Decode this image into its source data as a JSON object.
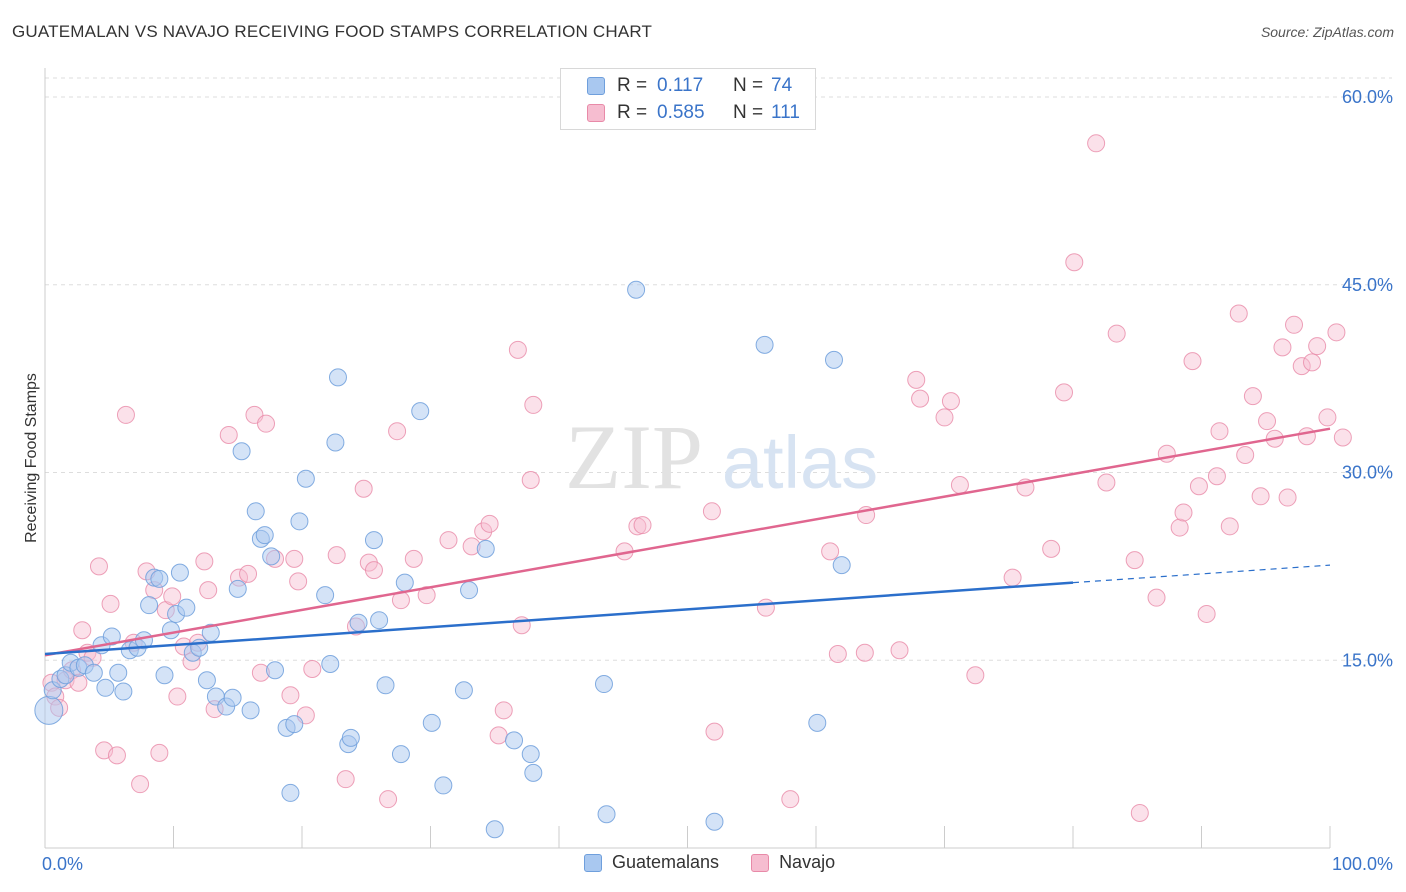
{
  "title": "GUATEMALAN VS NAVAJO RECEIVING FOOD STAMPS CORRELATION CHART",
  "source": "Source: ZipAtlas.com",
  "watermark": {
    "zip": "ZIP",
    "atlas": "atlas"
  },
  "colors": {
    "blue_fill": "#a9c8f0",
    "blue_stroke": "#6f9fdc",
    "blue_line": "#2b6fcb",
    "pink_fill": "#f6bdd0",
    "pink_stroke": "#e88aa8",
    "pink_line": "#e0668f",
    "tick_text": "#3a74c9",
    "grid": "#dddddd"
  },
  "legend": {
    "rows": [
      {
        "swatch": "blue",
        "r_label": "R =",
        "r_value": "0.117",
        "n_label": "N =",
        "n_value": "74"
      },
      {
        "swatch": "pink",
        "r_label": "R =",
        "r_value": "0.585",
        "n_label": "N =",
        "n_value": "111"
      }
    ]
  },
  "chart_data": {
    "type": "scatter",
    "title": "GUATEMALAN VS NAVAJO RECEIVING FOOD STAMPS CORRELATION CHART",
    "xlabel": "",
    "ylabel": "Receiving Food Stamps",
    "xlim": [
      0,
      100
    ],
    "ylim": [
      0,
      60
    ],
    "x_ticks": [
      "0.0%",
      "100.0%"
    ],
    "y_ticks": [
      {
        "value": 15,
        "label": "15.0%"
      },
      {
        "value": 30,
        "label": "30.0%"
      },
      {
        "value": 45,
        "label": "45.0%"
      },
      {
        "value": 60,
        "label": "60.0%"
      }
    ],
    "grid": "horizontal dashed",
    "legend_position": "bottom-center",
    "series": [
      {
        "name": "Guatemalans",
        "color": "blue",
        "trend": {
          "x0": 0,
          "y0": 15.5,
          "x1": 80,
          "y1": 21.2,
          "dash_x1": 100,
          "dash_y1": 22.6
        },
        "points": [
          [
            0.3,
            11.0
          ],
          [
            0.6,
            12.6
          ],
          [
            1.2,
            13.5
          ],
          [
            1.6,
            13.8
          ],
          [
            2.0,
            14.8
          ],
          [
            2.6,
            14.4
          ],
          [
            3.1,
            14.6
          ],
          [
            3.8,
            14.0
          ],
          [
            4.4,
            16.2
          ],
          [
            4.7,
            12.8
          ],
          [
            5.2,
            16.9
          ],
          [
            5.7,
            14.0
          ],
          [
            6.1,
            12.5
          ],
          [
            6.6,
            15.8
          ],
          [
            7.2,
            16.0
          ],
          [
            7.7,
            16.6
          ],
          [
            8.1,
            19.4
          ],
          [
            8.5,
            21.6
          ],
          [
            8.9,
            21.5
          ],
          [
            9.3,
            13.8
          ],
          [
            9.8,
            17.4
          ],
          [
            10.2,
            18.7
          ],
          [
            10.5,
            22.0
          ],
          [
            11.0,
            19.2
          ],
          [
            11.5,
            15.6
          ],
          [
            12.0,
            16.0
          ],
          [
            12.6,
            13.4
          ],
          [
            12.9,
            17.2
          ],
          [
            13.3,
            12.1
          ],
          [
            14.1,
            11.3
          ],
          [
            14.6,
            12.0
          ],
          [
            15.0,
            20.7
          ],
          [
            15.3,
            31.7
          ],
          [
            16.0,
            11.0
          ],
          [
            16.4,
            26.9
          ],
          [
            16.8,
            24.7
          ],
          [
            17.1,
            25.0
          ],
          [
            17.6,
            23.3
          ],
          [
            17.9,
            14.2
          ],
          [
            18.8,
            9.6
          ],
          [
            19.1,
            4.4
          ],
          [
            19.4,
            9.9
          ],
          [
            19.8,
            26.1
          ],
          [
            20.3,
            29.5
          ],
          [
            21.8,
            20.2
          ],
          [
            22.2,
            14.7
          ],
          [
            22.6,
            32.4
          ],
          [
            22.8,
            37.6
          ],
          [
            23.6,
            8.3
          ],
          [
            23.8,
            8.8
          ],
          [
            24.4,
            18.0
          ],
          [
            25.6,
            24.6
          ],
          [
            26.0,
            18.2
          ],
          [
            26.5,
            13.0
          ],
          [
            27.7,
            7.5
          ],
          [
            28.0,
            21.2
          ],
          [
            29.2,
            34.9
          ],
          [
            30.1,
            10.0
          ],
          [
            31.0,
            5.0
          ],
          [
            32.6,
            12.6
          ],
          [
            33.0,
            20.6
          ],
          [
            34.3,
            23.9
          ],
          [
            35.0,
            1.5
          ],
          [
            36.5,
            8.6
          ],
          [
            37.8,
            7.5
          ],
          [
            38.0,
            6.0
          ],
          [
            43.5,
            13.1
          ],
          [
            43.7,
            2.7
          ],
          [
            46.0,
            44.6
          ],
          [
            52.1,
            2.1
          ],
          [
            56.0,
            40.2
          ],
          [
            60.1,
            10.0
          ],
          [
            61.4,
            39.0
          ],
          [
            62.0,
            22.6
          ]
        ]
      },
      {
        "name": "Navajo",
        "color": "pink",
        "trend": {
          "x0": 0,
          "y0": 15.4,
          "x1": 100,
          "y1": 33.5
        },
        "points": [
          [
            0.5,
            13.2
          ],
          [
            0.8,
            12.1
          ],
          [
            1.1,
            11.2
          ],
          [
            1.6,
            13.4
          ],
          [
            2.1,
            14.2
          ],
          [
            2.6,
            13.2
          ],
          [
            2.9,
            17.4
          ],
          [
            3.3,
            15.6
          ],
          [
            3.7,
            15.2
          ],
          [
            4.2,
            22.5
          ],
          [
            4.6,
            7.8
          ],
          [
            5.1,
            19.5
          ],
          [
            5.6,
            7.4
          ],
          [
            6.3,
            34.6
          ],
          [
            6.9,
            16.4
          ],
          [
            7.4,
            5.1
          ],
          [
            7.9,
            22.1
          ],
          [
            8.5,
            20.6
          ],
          [
            8.9,
            7.6
          ],
          [
            9.4,
            19.0
          ],
          [
            9.9,
            20.1
          ],
          [
            10.3,
            12.1
          ],
          [
            10.8,
            16.1
          ],
          [
            11.4,
            14.9
          ],
          [
            11.9,
            16.4
          ],
          [
            12.4,
            22.9
          ],
          [
            12.7,
            20.6
          ],
          [
            13.2,
            11.1
          ],
          [
            14.3,
            33.0
          ],
          [
            15.1,
            21.6
          ],
          [
            15.8,
            21.9
          ],
          [
            16.3,
            34.6
          ],
          [
            16.8,
            14.0
          ],
          [
            17.2,
            33.9
          ],
          [
            17.9,
            23.1
          ],
          [
            19.1,
            12.2
          ],
          [
            19.4,
            23.1
          ],
          [
            19.7,
            21.3
          ],
          [
            20.3,
            10.6
          ],
          [
            20.8,
            14.3
          ],
          [
            22.7,
            23.4
          ],
          [
            23.4,
            5.5
          ],
          [
            24.2,
            17.7
          ],
          [
            24.8,
            28.7
          ],
          [
            25.2,
            22.8
          ],
          [
            25.6,
            22.2
          ],
          [
            26.7,
            3.9
          ],
          [
            27.4,
            33.3
          ],
          [
            27.7,
            19.8
          ],
          [
            28.7,
            23.1
          ],
          [
            29.7,
            20.2
          ],
          [
            31.4,
            24.6
          ],
          [
            33.2,
            24.1
          ],
          [
            34.1,
            25.3
          ],
          [
            34.6,
            25.9
          ],
          [
            35.3,
            9.0
          ],
          [
            35.7,
            11.0
          ],
          [
            36.8,
            39.8
          ],
          [
            37.1,
            17.8
          ],
          [
            37.8,
            29.4
          ],
          [
            38.0,
            35.4
          ],
          [
            45.1,
            23.7
          ],
          [
            46.1,
            25.7
          ],
          [
            46.5,
            25.8
          ],
          [
            51.9,
            26.9
          ],
          [
            52.1,
            9.3
          ],
          [
            56.1,
            19.2
          ],
          [
            58.0,
            3.9
          ],
          [
            61.1,
            23.7
          ],
          [
            61.7,
            15.5
          ],
          [
            63.8,
            15.6
          ],
          [
            63.9,
            26.6
          ],
          [
            66.5,
            15.8
          ],
          [
            67.8,
            37.4
          ],
          [
            68.1,
            35.9
          ],
          [
            70.0,
            34.4
          ],
          [
            70.5,
            35.7
          ],
          [
            71.2,
            29.0
          ],
          [
            72.4,
            13.8
          ],
          [
            75.3,
            21.6
          ],
          [
            76.3,
            28.8
          ],
          [
            78.3,
            23.9
          ],
          [
            79.3,
            36.4
          ],
          [
            80.1,
            46.8
          ],
          [
            81.8,
            56.3
          ],
          [
            82.6,
            29.2
          ],
          [
            83.4,
            41.1
          ],
          [
            84.8,
            23.0
          ],
          [
            85.2,
            2.8
          ],
          [
            86.5,
            20.0
          ],
          [
            87.3,
            31.5
          ],
          [
            88.3,
            25.6
          ],
          [
            88.6,
            26.8
          ],
          [
            89.3,
            38.9
          ],
          [
            89.8,
            28.9
          ],
          [
            90.4,
            18.7
          ],
          [
            91.2,
            29.7
          ],
          [
            91.4,
            33.3
          ],
          [
            92.2,
            25.7
          ],
          [
            92.9,
            42.7
          ],
          [
            93.4,
            31.4
          ],
          [
            94.0,
            36.1
          ],
          [
            94.6,
            28.1
          ],
          [
            95.1,
            34.1
          ],
          [
            95.7,
            32.7
          ],
          [
            96.3,
            40.0
          ],
          [
            96.7,
            28.0
          ],
          [
            97.2,
            41.8
          ],
          [
            97.8,
            38.5
          ],
          [
            98.2,
            32.9
          ],
          [
            98.6,
            38.8
          ],
          [
            99.0,
            40.1
          ],
          [
            99.8,
            34.4
          ],
          [
            100.5,
            41.2
          ],
          [
            101.0,
            32.8
          ]
        ]
      }
    ]
  },
  "legend_bottom": {
    "items": [
      "Guatemalans",
      "Navajo"
    ]
  }
}
